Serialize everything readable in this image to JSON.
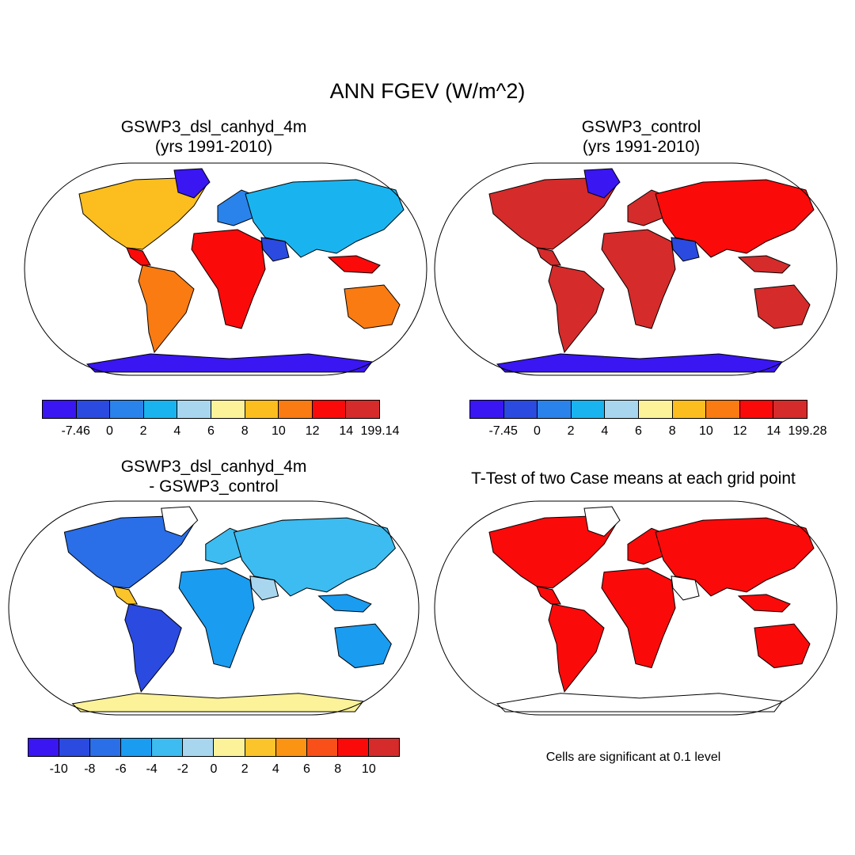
{
  "title": "ANN FGEV (W/m^2)",
  "panels": [
    {
      "title_line1": "GSWP3_dsl_canhyd_4m",
      "title_line2": "(yrs 1991-2010)"
    },
    {
      "title_line1": "GSWP3_control",
      "title_line2": "(yrs 1991-2010)"
    },
    {
      "title_line1": "GSWP3_dsl_canhyd_4m",
      "title_line2": "- GSWP3_control"
    },
    {
      "title_line1": "T-Test of two Case means at each grid point",
      "title_line2": ""
    }
  ],
  "colorbars": [
    {
      "labels": [
        "-7.46",
        "0",
        "2",
        "4",
        "6",
        "8",
        "10",
        "12",
        "14",
        "199.14"
      ],
      "colors": [
        "#3a16f2",
        "#2b4ae0",
        "#2a83ea",
        "#19b4f0",
        "#a8d6ef",
        "#fbf29a",
        "#fbbe1e",
        "#f97b12",
        "#fb0a0a",
        "#d52b2b"
      ]
    },
    {
      "labels": [
        "-7.45",
        "0",
        "2",
        "4",
        "6",
        "8",
        "10",
        "12",
        "14",
        "199.28"
      ],
      "colors": [
        "#3a16f2",
        "#2b4ae0",
        "#2a83ea",
        "#19b4f0",
        "#a8d6ef",
        "#fbf29a",
        "#fbbe1e",
        "#f97b12",
        "#fb0a0a",
        "#d52b2b"
      ]
    },
    {
      "labels": [
        "-10",
        "-8",
        "-6",
        "-4",
        "-2",
        "0",
        "2",
        "4",
        "6",
        "8",
        "10"
      ],
      "colors": [
        "#3a16f2",
        "#2b4ae0",
        "#2a6ee8",
        "#1a9cf0",
        "#3cbcf0",
        "#a8d6ef",
        "#fbf29a",
        "#fbc42a",
        "#fb9412",
        "#f85018",
        "#fb0a0a",
        "#d52b2b"
      ]
    }
  ],
  "significance_note": "Cells are significant at 0.1 level",
  "significance_color": "#fb0a0a"
}
